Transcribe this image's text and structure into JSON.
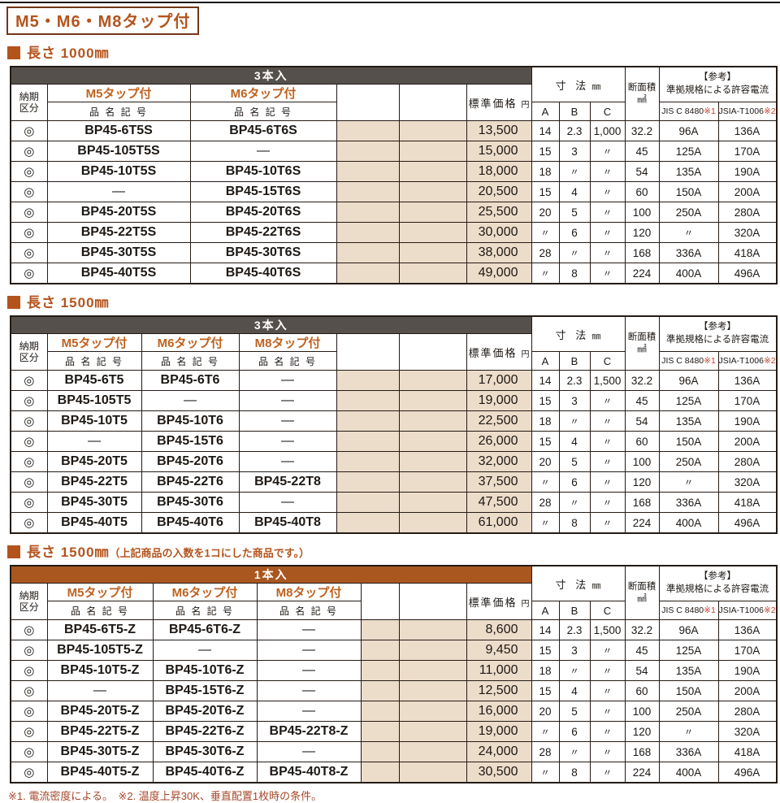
{
  "title": "M5・M6・M8タップ付",
  "footnote": "※1. 電流密度による。　※2. 温度上昇30K、垂直配置1枚時の条件。",
  "colors": {
    "accent": "#b4541d",
    "tap_header_text": "#bf621f",
    "dark_pack_bar": "#55504c",
    "orange_pack_bar": "#a9571f",
    "beige_cell": "#ecdcca",
    "reference_mark_red": "#c43f28",
    "footnote_text": "#a5472b"
  },
  "common_header": {
    "delivery_line1": "納期",
    "delivery_line2": "区分",
    "product_sub": "品 名 記 号",
    "price_label": "標準価格",
    "price_unit": "円",
    "dims_label": "寸 法",
    "dims_unit": "㎜",
    "dim_cols": [
      "A",
      "B",
      "C"
    ],
    "area_label": "断面積",
    "area_unit": "㎟",
    "ref_line1": "【参考】",
    "ref_line2": "準拠規格による許容電流",
    "standards": [
      {
        "name": "JIS C 8480",
        "mark": "※1"
      },
      {
        "name": "JSIA-T1006",
        "mark": "※2"
      }
    ]
  },
  "sections": [
    {
      "heading": "長さ 1000㎜",
      "heading_note": "",
      "pack_label": "3本入",
      "pack_theme": "dark",
      "tap_headers": [
        "M5タップ付",
        "M6タップ付"
      ],
      "rows": [
        {
          "delivery": "◎",
          "names": [
            "BP45-6T5S",
            "BP45-6T6S"
          ],
          "price": "13,500",
          "a": "14",
          "b": "2.3",
          "c": "1,000",
          "area": "32.2",
          "jis": "96A",
          "jsia": "136A"
        },
        {
          "delivery": "◎",
          "names": [
            "BP45-105T5S",
            "—"
          ],
          "price": "15,000",
          "a": "15",
          "b": "3",
          "c": "〃",
          "area": "45",
          "jis": "125A",
          "jsia": "170A"
        },
        {
          "delivery": "◎",
          "names": [
            "BP45-10T5S",
            "BP45-10T6S"
          ],
          "price": "18,000",
          "a": "18",
          "b": "〃",
          "c": "〃",
          "area": "54",
          "jis": "135A",
          "jsia": "190A"
        },
        {
          "delivery": "◎",
          "names": [
            "—",
            "BP45-15T6S"
          ],
          "price": "20,500",
          "a": "15",
          "b": "4",
          "c": "〃",
          "area": "60",
          "jis": "150A",
          "jsia": "200A"
        },
        {
          "delivery": "◎",
          "names": [
            "BP45-20T5S",
            "BP45-20T6S"
          ],
          "price": "25,500",
          "a": "20",
          "b": "5",
          "c": "〃",
          "area": "100",
          "jis": "250A",
          "jsia": "280A"
        },
        {
          "delivery": "◎",
          "names": [
            "BP45-22T5S",
            "BP45-22T6S"
          ],
          "price": "30,000",
          "a": "〃",
          "b": "6",
          "c": "〃",
          "area": "120",
          "jis": "〃",
          "jsia": "320A"
        },
        {
          "delivery": "◎",
          "names": [
            "BP45-30T5S",
            "BP45-30T6S"
          ],
          "price": "38,000",
          "a": "28",
          "b": "〃",
          "c": "〃",
          "area": "168",
          "jis": "336A",
          "jsia": "418A"
        },
        {
          "delivery": "◎",
          "names": [
            "BP45-40T5S",
            "BP45-40T6S"
          ],
          "price": "49,000",
          "a": "〃",
          "b": "8",
          "c": "〃",
          "area": "224",
          "jis": "400A",
          "jsia": "496A"
        }
      ]
    },
    {
      "heading": "長さ 1500㎜",
      "heading_note": "",
      "pack_label": "3本入",
      "pack_theme": "dark",
      "tap_headers": [
        "M5タップ付",
        "M6タップ付",
        "M8タップ付"
      ],
      "rows": [
        {
          "delivery": "◎",
          "names": [
            "BP45-6T5",
            "BP45-6T6",
            "—"
          ],
          "price": "17,000",
          "a": "14",
          "b": "2.3",
          "c": "1,500",
          "area": "32.2",
          "jis": "96A",
          "jsia": "136A"
        },
        {
          "delivery": "◎",
          "names": [
            "BP45-105T5",
            "—",
            "—"
          ],
          "price": "19,000",
          "a": "15",
          "b": "3",
          "c": "〃",
          "area": "45",
          "jis": "125A",
          "jsia": "170A"
        },
        {
          "delivery": "◎",
          "names": [
            "BP45-10T5",
            "BP45-10T6",
            "—"
          ],
          "price": "22,500",
          "a": "18",
          "b": "〃",
          "c": "〃",
          "area": "54",
          "jis": "135A",
          "jsia": "190A"
        },
        {
          "delivery": "◎",
          "names": [
            "—",
            "BP45-15T6",
            "—"
          ],
          "price": "26,000",
          "a": "15",
          "b": "4",
          "c": "〃",
          "area": "60",
          "jis": "150A",
          "jsia": "200A"
        },
        {
          "delivery": "◎",
          "names": [
            "BP45-20T5",
            "BP45-20T6",
            "—"
          ],
          "price": "32,000",
          "a": "20",
          "b": "5",
          "c": "〃",
          "area": "100",
          "jis": "250A",
          "jsia": "280A"
        },
        {
          "delivery": "◎",
          "names": [
            "BP45-22T5",
            "BP45-22T6",
            "BP45-22T8"
          ],
          "price": "37,500",
          "a": "〃",
          "b": "6",
          "c": "〃",
          "area": "120",
          "jis": "〃",
          "jsia": "320A"
        },
        {
          "delivery": "◎",
          "names": [
            "BP45-30T5",
            "BP45-30T6",
            "—"
          ],
          "price": "47,500",
          "a": "28",
          "b": "〃",
          "c": "〃",
          "area": "168",
          "jis": "336A",
          "jsia": "418A"
        },
        {
          "delivery": "◎",
          "names": [
            "BP45-40T5",
            "BP45-40T6",
            "BP45-40T8"
          ],
          "price": "61,000",
          "a": "〃",
          "b": "8",
          "c": "〃",
          "area": "224",
          "jis": "400A",
          "jsia": "496A"
        }
      ]
    },
    {
      "heading": "長さ 1500㎜",
      "heading_note": "（上記商品の入数を1コにした商品です。）",
      "pack_label": "1本入",
      "pack_theme": "orange",
      "tap_headers": [
        "M5タップ付",
        "M6タップ付",
        "M8タップ付"
      ],
      "rows": [
        {
          "delivery": "◎",
          "names": [
            "BP45-6T5-Z",
            "BP45-6T6-Z",
            "—"
          ],
          "price": "8,600",
          "a": "14",
          "b": "2.3",
          "c": "1,500",
          "area": "32.2",
          "jis": "96A",
          "jsia": "136A"
        },
        {
          "delivery": "◎",
          "names": [
            "BP45-105T5-Z",
            "—",
            "—"
          ],
          "price": "9,450",
          "a": "15",
          "b": "3",
          "c": "〃",
          "area": "45",
          "jis": "125A",
          "jsia": "170A"
        },
        {
          "delivery": "◎",
          "names": [
            "BP45-10T5-Z",
            "BP45-10T6-Z",
            "—"
          ],
          "price": "11,000",
          "a": "18",
          "b": "〃",
          "c": "〃",
          "area": "54",
          "jis": "135A",
          "jsia": "190A"
        },
        {
          "delivery": "◎",
          "names": [
            "—",
            "BP45-15T6-Z",
            "—"
          ],
          "price": "12,500",
          "a": "15",
          "b": "4",
          "c": "〃",
          "area": "60",
          "jis": "150A",
          "jsia": "200A"
        },
        {
          "delivery": "◎",
          "names": [
            "BP45-20T5-Z",
            "BP45-20T6-Z",
            "—"
          ],
          "price": "16,000",
          "a": "20",
          "b": "5",
          "c": "〃",
          "area": "100",
          "jis": "250A",
          "jsia": "280A"
        },
        {
          "delivery": "◎",
          "names": [
            "BP45-22T5-Z",
            "BP45-22T6-Z",
            "BP45-22T8-Z"
          ],
          "price": "19,000",
          "a": "〃",
          "b": "6",
          "c": "〃",
          "area": "120",
          "jis": "〃",
          "jsia": "320A"
        },
        {
          "delivery": "◎",
          "names": [
            "BP45-30T5-Z",
            "BP45-30T6-Z",
            "—"
          ],
          "price": "24,000",
          "a": "28",
          "b": "〃",
          "c": "〃",
          "area": "168",
          "jis": "336A",
          "jsia": "418A"
        },
        {
          "delivery": "◎",
          "names": [
            "BP45-40T5-Z",
            "BP45-40T6-Z",
            "BP45-40T8-Z"
          ],
          "price": "30,500",
          "a": "〃",
          "b": "8",
          "c": "〃",
          "area": "224",
          "jis": "400A",
          "jsia": "496A"
        }
      ]
    }
  ]
}
